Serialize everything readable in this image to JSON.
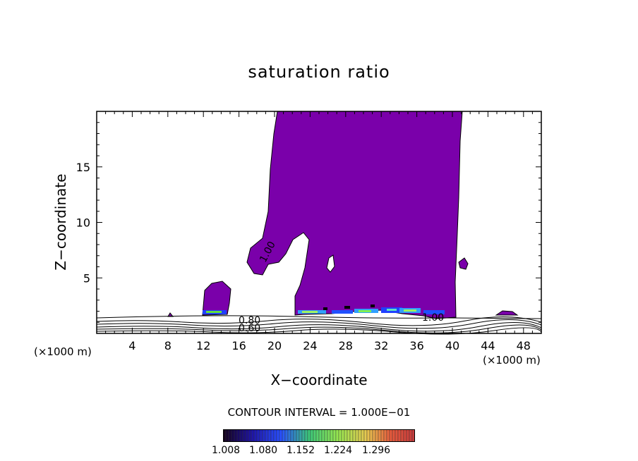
{
  "chart_data": {
    "type": "contour",
    "title": "saturation ratio",
    "xlabel": "X−coordinate",
    "ylabel": "Z−coordinate",
    "x_unit_left": "(×1000 m)",
    "x_unit_right": "(×1000 m)",
    "xlim": [
      0,
      50
    ],
    "ylim": [
      0,
      20
    ],
    "x_ticks": [
      4,
      8,
      12,
      16,
      20,
      24,
      28,
      32,
      36,
      40,
      44,
      48
    ],
    "y_ticks": [
      5,
      10,
      15
    ],
    "contour_labels": [
      "1.00",
      "0.80",
      "0.60",
      "1.00"
    ],
    "fill_color": "#7a00aa",
    "contour_interval_text": "CONTOUR INTERVAL = 1.000E−01",
    "colorbar": {
      "tick_labels": [
        "1.008",
        "1.080",
        "1.152",
        "1.224",
        "1.296"
      ],
      "range": [
        1.008,
        1.296
      ]
    },
    "grid": false
  }
}
